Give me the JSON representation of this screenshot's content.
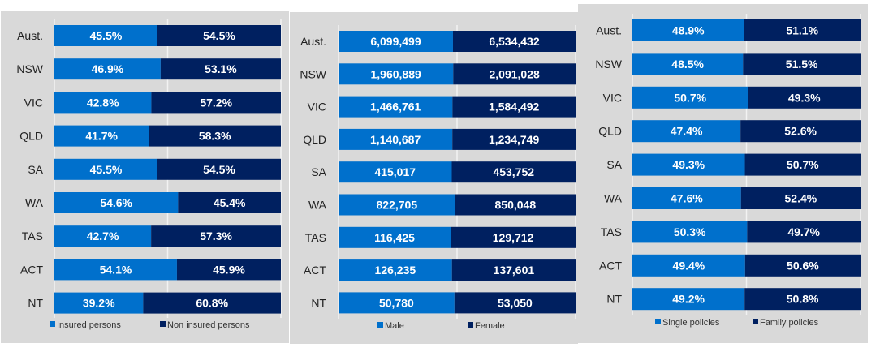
{
  "colors": {
    "primary": "#0070cc",
    "secondary": "#002060",
    "background": "#d9d9d9",
    "grid": "#f2f2f2"
  },
  "chart_data": [
    {
      "type": "bar",
      "orientation": "horizontal",
      "stacked": "100%",
      "categories": [
        "Aust.",
        "NSW",
        "VIC",
        "QLD",
        "SA",
        "WA",
        "TAS",
        "ACT",
        "NT"
      ],
      "series": [
        {
          "name": "Insured persons",
          "values": [
            45.5,
            46.9,
            42.8,
            41.7,
            45.5,
            54.6,
            42.7,
            54.1,
            39.2
          ],
          "labels": [
            "45.5%",
            "46.9%",
            "42.8%",
            "41.7%",
            "45.5%",
            "54.6%",
            "42.7%",
            "54.1%",
            "39.2%"
          ]
        },
        {
          "name": "Non insured persons",
          "values": [
            54.5,
            53.1,
            57.2,
            58.3,
            54.5,
            45.4,
            57.3,
            45.9,
            60.8
          ],
          "labels": [
            "54.5%",
            "53.1%",
            "57.2%",
            "58.3%",
            "54.5%",
            "45.4%",
            "57.3%",
            "45.9%",
            "60.8%"
          ]
        }
      ],
      "legend": "bottom",
      "grid": true
    },
    {
      "type": "bar",
      "orientation": "horizontal",
      "stacked": "100%",
      "categories": [
        "Aust.",
        "NSW",
        "VIC",
        "QLD",
        "SA",
        "WA",
        "TAS",
        "ACT",
        "NT"
      ],
      "series": [
        {
          "name": "Male",
          "values": [
            6099499,
            1960889,
            1466761,
            1140687,
            415017,
            822705,
            116425,
            126235,
            50780
          ],
          "labels": [
            "6,099,499",
            "1,960,889",
            "1,466,761",
            "1,140,687",
            "415,017",
            "822,705",
            "116,425",
            "126,235",
            "50,780"
          ]
        },
        {
          "name": "Female",
          "values": [
            6534432,
            2091028,
            1584492,
            1234749,
            453752,
            850048,
            129712,
            137601,
            53050
          ],
          "labels": [
            "6,534,432",
            "2,091,028",
            "1,584,492",
            "1,234,749",
            "453,752",
            "850,048",
            "129,712",
            "137,601",
            "53,050"
          ]
        }
      ],
      "legend": "bottom",
      "grid": true
    },
    {
      "type": "bar",
      "orientation": "horizontal",
      "stacked": "100%",
      "categories": [
        "Aust.",
        "NSW",
        "VIC",
        "QLD",
        "SA",
        "WA",
        "TAS",
        "ACT",
        "NT"
      ],
      "series": [
        {
          "name": "Single policies",
          "values": [
            48.9,
            48.5,
            50.7,
            47.4,
            49.3,
            47.6,
            50.3,
            49.4,
            49.2
          ],
          "labels": [
            "48.9%",
            "48.5%",
            "50.7%",
            "47.4%",
            "49.3%",
            "47.6%",
            "50.3%",
            "49.4%",
            "49.2%"
          ]
        },
        {
          "name": "Family policies",
          "values": [
            51.1,
            51.5,
            49.3,
            52.6,
            50.7,
            52.4,
            49.7,
            50.6,
            50.8
          ],
          "labels": [
            "51.1%",
            "51.5%",
            "49.3%",
            "52.6%",
            "50.7%",
            "52.4%",
            "49.7%",
            "50.6%",
            "50.8%"
          ]
        }
      ],
      "legend": "bottom",
      "grid": true
    }
  ]
}
